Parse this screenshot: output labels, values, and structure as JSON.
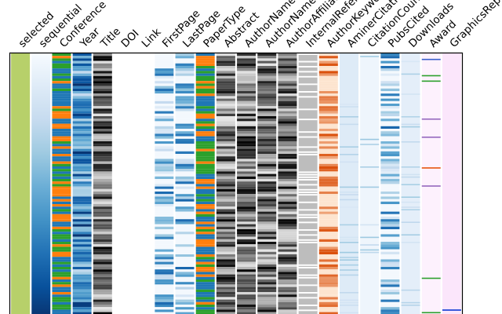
{
  "chart_data": {
    "type": "heatmap",
    "title": "",
    "xlabel": "",
    "ylabel": "",
    "grid": false,
    "legend": "none",
    "columns": [
      {
        "name": "selected",
        "colormap": "solid",
        "color": "#b7d06a",
        "density": 0,
        "style": "solid"
      },
      {
        "name": "sequential",
        "colormap": "Blues",
        "color": "#2171b5",
        "density": 0,
        "style": "gradient"
      },
      {
        "name": "Conference",
        "colormap": "categorical",
        "color": "#2a7fb8",
        "density": 1,
        "style": "categorical",
        "palette": [
          "#1f77b4",
          "#ff7f0e",
          "#2ca02c",
          "#1f77b4"
        ]
      },
      {
        "name": "Year",
        "colormap": "Blues",
        "color": "#3f8fc7",
        "density": 1,
        "style": "dense"
      },
      {
        "name": "Title",
        "colormap": "Greys",
        "color": "#222222",
        "density": 1,
        "style": "dense"
      },
      {
        "name": "DOI",
        "colormap": "none",
        "color": "#ffffff",
        "density": 0,
        "style": "empty"
      },
      {
        "name": "Link",
        "colormap": "none",
        "color": "#ffffff",
        "density": 0,
        "style": "empty"
      },
      {
        "name": "FirstPage",
        "colormap": "Blues",
        "color": "#6baed6",
        "density": 0.55,
        "style": "sparse"
      },
      {
        "name": "LastPage",
        "colormap": "Blues",
        "color": "#9ecae1",
        "density": 0.5,
        "style": "sparse"
      },
      {
        "name": "PaperType",
        "colormap": "categorical",
        "color": "#2c7fb8",
        "density": 1,
        "style": "categorical",
        "palette": [
          "#1f77b4",
          "#ff7f0e",
          "#2ca02c"
        ]
      },
      {
        "name": "Abstract",
        "colormap": "Greys",
        "color": "#333333",
        "density": 1,
        "style": "dense"
      },
      {
        "name": "AuthorNames",
        "colormap": "Greys",
        "color": "#444444",
        "density": 1,
        "style": "dense"
      },
      {
        "name": "AuthorNames",
        "colormap": "Greys",
        "color": "#555555",
        "density": 1,
        "style": "dense"
      },
      {
        "name": "AuthorAffiliation",
        "colormap": "Greys",
        "color": "#333333",
        "density": 1,
        "style": "dense"
      },
      {
        "name": "InternalReferences",
        "colormap": "Greys",
        "color": "#bdbdbd",
        "density": 1,
        "style": "grey-block"
      },
      {
        "name": "AuthorKeywords",
        "colormap": "Oranges",
        "color": "#e6550d",
        "density": 1,
        "style": "dense"
      },
      {
        "name": "AminerCitationCount",
        "colormap": "Blues",
        "color": "#deebf7",
        "density": 0.25,
        "style": "faint"
      },
      {
        "name": "CitationCount",
        "colormap": "Blues",
        "color": "#eef5fc",
        "density": 0.1,
        "style": "faint"
      },
      {
        "name": "PubsCited",
        "colormap": "Blues",
        "color": "#c6dbef",
        "density": 0.6,
        "style": "sparse"
      },
      {
        "name": "Downloads",
        "colormap": "Blues",
        "color": "#e4eef9",
        "density": 0.2,
        "style": "faint"
      },
      {
        "name": "Award",
        "colormap": "categorical",
        "color": "#fdf1fd",
        "density": 0.08,
        "style": "award"
      },
      {
        "name": "GraphicsReplicabilityStamp",
        "colormap": "solid",
        "color": "#fbe6fb",
        "density": 0.01,
        "style": "solid-pink"
      }
    ]
  }
}
